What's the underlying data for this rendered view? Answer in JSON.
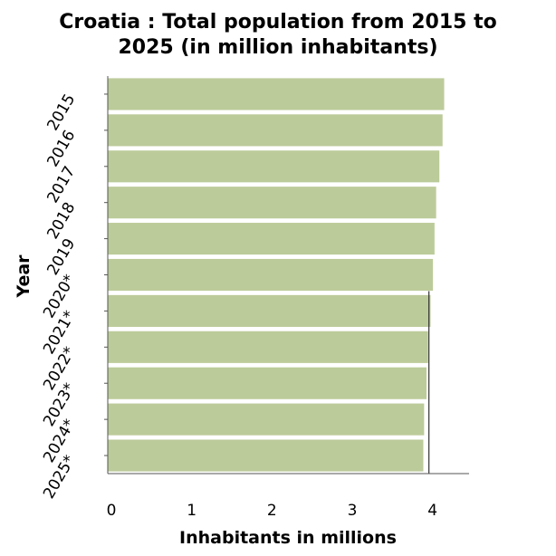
{
  "chart_data": {
    "type": "bar",
    "orientation": "horizontal",
    "title": "Croatia : Total population from 2015 to 2025 (in million inhabitants)",
    "title_lines": [
      "Croatia : Total population from 2015 to",
      "2025 (in million inhabitants)"
    ],
    "xlabel": "Inhabitants in millions",
    "ylabel": "Year",
    "categories": [
      "2015",
      "2016",
      "2017",
      "2018",
      "2019",
      "2020*",
      "2021*",
      "2022*",
      "2023*",
      "2024*",
      "2025*"
    ],
    "values": [
      4.19,
      4.17,
      4.13,
      4.09,
      4.07,
      4.05,
      4.02,
      3.99,
      3.97,
      3.94,
      3.93
    ],
    "xlim": [
      0,
      4.5
    ],
    "xticks": [
      "0",
      "1",
      "2",
      "3",
      "4"
    ],
    "bar_color": "#bccb9a",
    "reference_line": 4,
    "grid": false
  }
}
